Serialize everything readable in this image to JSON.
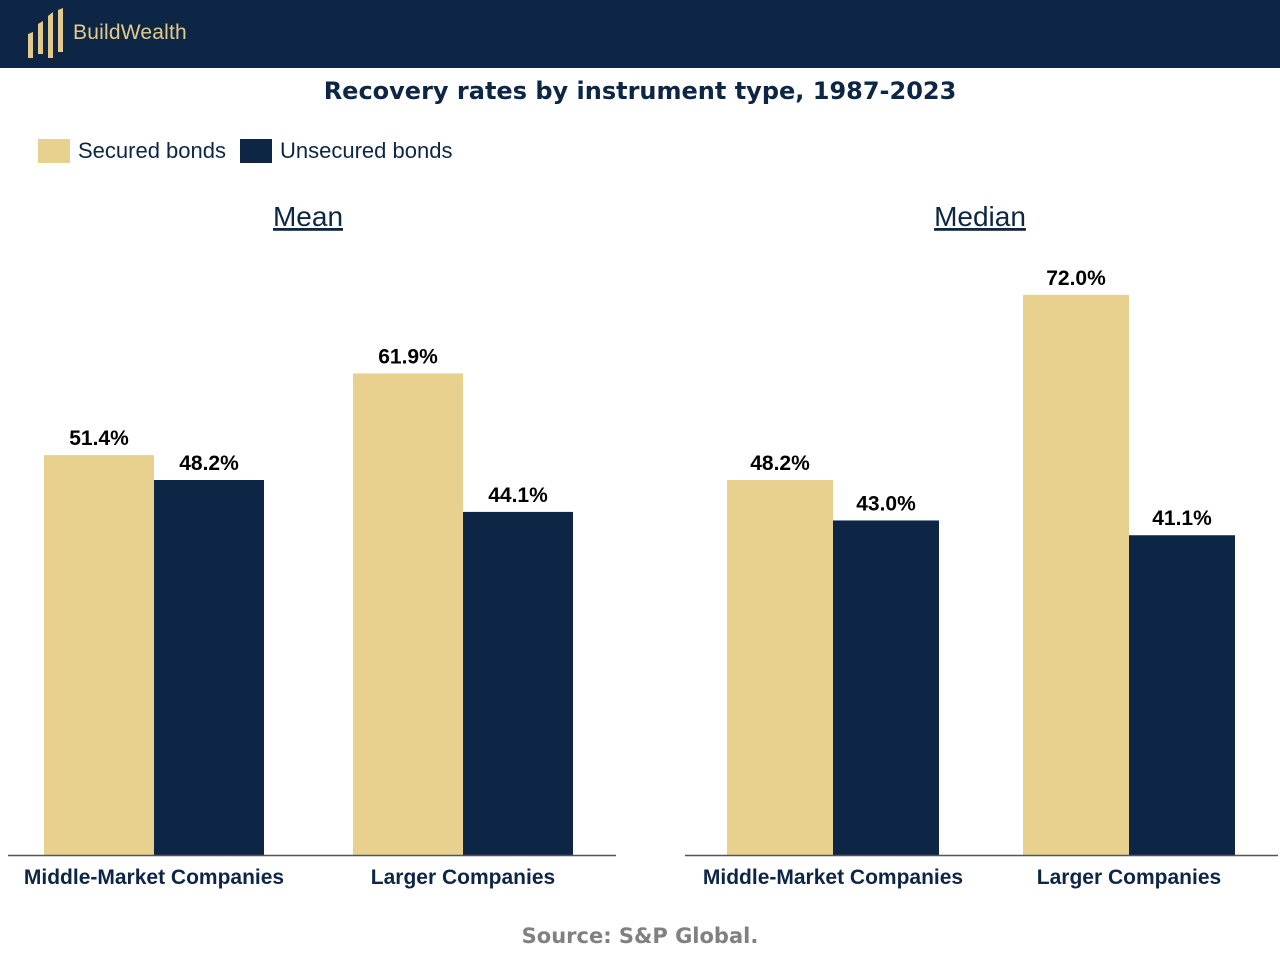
{
  "header": {
    "brand": "BuildWealth",
    "logo_icon": "buildwealth-bars-logo",
    "background": "#0d2646",
    "accent": "#e3c98b"
  },
  "chart_data": {
    "type": "bar",
    "title": "Recovery rates by instrument type, 1987-2023",
    "legend": {
      "placement": "top-left",
      "items": [
        {
          "label": "Secured bonds",
          "color": "#e8d08f"
        },
        {
          "label": "Unsecured bonds",
          "color": "#0d2646"
        }
      ]
    },
    "ylim": [
      0,
      100
    ],
    "grid": false,
    "panels": [
      {
        "subtitle": "Mean",
        "categories": [
          "Middle-Market Companies",
          "Larger Companies"
        ],
        "series": [
          {
            "name": "Secured bonds",
            "values": [
              51.4,
              61.9
            ],
            "labels": [
              "51.4%",
              "61.9%"
            ]
          },
          {
            "name": "Unsecured bonds",
            "values": [
              48.2,
              44.1
            ],
            "labels": [
              "48.2%",
              "44.1%"
            ]
          }
        ]
      },
      {
        "subtitle": "Median",
        "categories": [
          "Middle-Market Companies",
          "Larger Companies"
        ],
        "series": [
          {
            "name": "Secured bonds",
            "values": [
              48.2,
              72.0
            ],
            "labels": [
              "48.2%",
              "72.0%"
            ]
          },
          {
            "name": "Unsecured bonds",
            "values": [
              43.0,
              41.1
            ],
            "labels": [
              "43.0%",
              "41.1%"
            ]
          }
        ]
      }
    ]
  },
  "footer": {
    "source": "Source: S&P Global."
  }
}
